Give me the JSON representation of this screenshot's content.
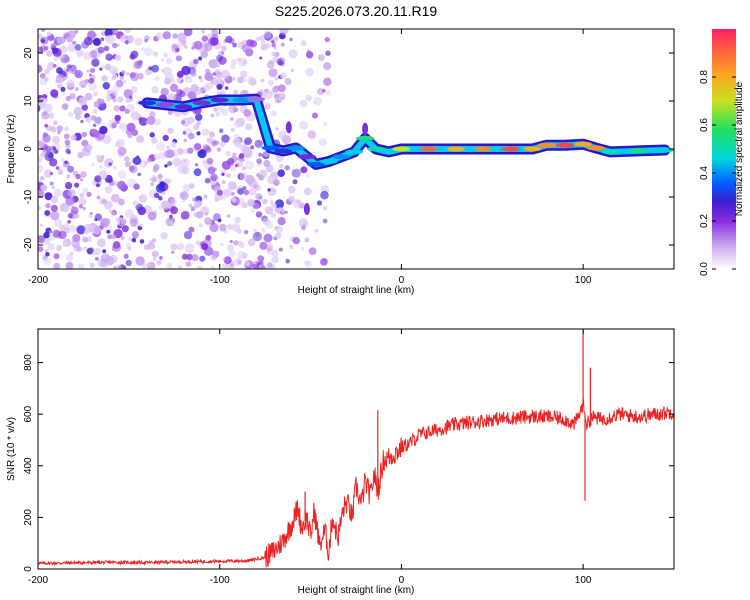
{
  "figure_title": "S225.2026.073.20.11.R19",
  "chart_data": [
    {
      "type": "heatmap",
      "xlabel": "Height of straight line (km)",
      "ylabel": "Frequency (Hz)",
      "xlim": [
        -200,
        150
      ],
      "ylim": [
        -25,
        25
      ],
      "xticks": [
        "-200",
        "-100",
        "0",
        "100"
      ],
      "yticks": [
        "-20",
        "-10",
        "0",
        "10",
        "20"
      ],
      "grid": false,
      "colorbar": {
        "label": "Normalized spectral amplitude",
        "range": [
          0,
          1
        ],
        "ticks": [
          "0.0",
          "0.2",
          "0.4",
          "0.6",
          "0.8"
        ],
        "colors": [
          "#f3ecfb",
          "#c9a4ee",
          "#8a2be2",
          "#3a1fd0",
          "#0060ff",
          "#00d8e0",
          "#20e060",
          "#c8e020",
          "#ffa020",
          "#ff2040"
        ]
      },
      "ridge": [
        {
          "x": -140,
          "y": 9.6,
          "v": 0.3
        },
        {
          "x": -130,
          "y": 9.2,
          "v": 0.18
        },
        {
          "x": -120,
          "y": 8.8,
          "v": 0.25
        },
        {
          "x": -110,
          "y": 9.6,
          "v": 0.22
        },
        {
          "x": -100,
          "y": 10.2,
          "v": 0.25
        },
        {
          "x": -88,
          "y": 10.2,
          "v": 0.4
        },
        {
          "x": -80,
          "y": 10.4,
          "v": 0.15
        },
        {
          "x": -72,
          "y": 0.2,
          "v": 0.35
        },
        {
          "x": -65,
          "y": -0.4,
          "v": 0.3
        },
        {
          "x": -58,
          "y": 0.2,
          "v": 0.4
        },
        {
          "x": -52,
          "y": -1.6,
          "v": 0.22
        },
        {
          "x": -47,
          "y": -3.2,
          "v": 0.35
        },
        {
          "x": -40,
          "y": -2.6,
          "v": 0.45
        },
        {
          "x": -33,
          "y": -1.6,
          "v": 0.4
        },
        {
          "x": -26,
          "y": -0.6,
          "v": 0.45
        },
        {
          "x": -20,
          "y": 2.2,
          "v": 0.55
        },
        {
          "x": -14,
          "y": 0.0,
          "v": 0.5
        },
        {
          "x": -7,
          "y": -0.6,
          "v": 0.45
        },
        {
          "x": 0,
          "y": 0.0,
          "v": 0.7
        },
        {
          "x": 15,
          "y": 0.0,
          "v": 0.9
        },
        {
          "x": 30,
          "y": 0.0,
          "v": 0.8
        },
        {
          "x": 45,
          "y": 0.0,
          "v": 0.85
        },
        {
          "x": 60,
          "y": 0.0,
          "v": 0.95
        },
        {
          "x": 72,
          "y": 0.0,
          "v": 0.8
        },
        {
          "x": 80,
          "y": 0.8,
          "v": 0.85
        },
        {
          "x": 90,
          "y": 0.8,
          "v": 0.95
        },
        {
          "x": 100,
          "y": 1.0,
          "v": 0.8
        },
        {
          "x": 107,
          "y": 0.2,
          "v": 0.85
        },
        {
          "x": 115,
          "y": -0.6,
          "v": 0.5
        },
        {
          "x": 130,
          "y": -0.4,
          "v": 0.55
        },
        {
          "x": 145,
          "y": -0.2,
          "v": 0.45
        }
      ]
    },
    {
      "type": "line",
      "xlabel": "Height of straight line (km)",
      "ylabel": "SNR (10 * v/v)",
      "xlim": [
        -200,
        150
      ],
      "ylim": [
        0,
        930
      ],
      "xticks": [
        "-200",
        "-100",
        "0",
        "100"
      ],
      "yticks": [
        "0",
        "200",
        "400",
        "600",
        "800"
      ],
      "grid": false,
      "color": "#ee2222",
      "series": [
        {
          "x": [
            -200,
            -180,
            -160,
            -140,
            -120,
            -100,
            -85,
            -75,
            -70,
            -65,
            -60,
            -57,
            -55,
            -52,
            -50,
            -48,
            -45,
            -42,
            -40,
            -38,
            -35,
            -32,
            -30,
            -27,
            -25,
            -22,
            -20,
            -17,
            -15,
            -13,
            -10,
            -5,
            0,
            5,
            10,
            20,
            30,
            40,
            50,
            60,
            70,
            80,
            90,
            95,
            98,
            100,
            102,
            105,
            110,
            120,
            130,
            140,
            150
          ],
          "values": [
            22,
            24,
            26,
            25,
            28,
            30,
            32,
            45,
            70,
            110,
            180,
            240,
            160,
            200,
            120,
            230,
            90,
            150,
            60,
            200,
            120,
            230,
            260,
            200,
            320,
            250,
            340,
            280,
            370,
            300,
            420,
            440,
            470,
            490,
            520,
            540,
            560,
            570,
            580,
            585,
            590,
            590,
            580,
            560,
            600,
            640,
            560,
            590,
            580,
            600,
            590,
            600,
            610
          ]
        }
      ],
      "spikes": [
        {
          "x": -53,
          "y": 300
        },
        {
          "x": -13,
          "y": 615
        },
        {
          "x": 100,
          "y": 930
        },
        {
          "x": 101,
          "y": 265
        },
        {
          "x": 104,
          "y": 780
        }
      ]
    }
  ]
}
